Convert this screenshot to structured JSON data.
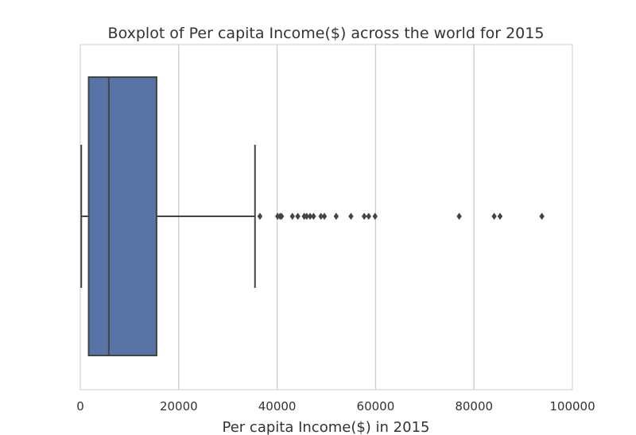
{
  "chart_data": {
    "type": "boxplot",
    "title": "Boxplot of Per capita Income($) across the world for 2015",
    "xlabel": "Per capita Income($) in 2015",
    "ylabel": "",
    "orientation": "horizontal",
    "xlim": [
      0,
      100000
    ],
    "xticks": [
      0,
      20000,
      40000,
      60000,
      80000,
      100000
    ],
    "xtick_labels": [
      "0",
      "20000",
      "40000",
      "60000",
      "80000",
      "100000"
    ],
    "grid": true,
    "legend": "none",
    "box": {
      "whisker_low": 200,
      "q1": 1700,
      "median": 5800,
      "q3": 15500,
      "whisker_high": 35500
    },
    "outliers": [
      36500,
      40100,
      40600,
      40900,
      43100,
      44200,
      45500,
      46000,
      46700,
      47400,
      48900,
      49600,
      52000,
      55000,
      57700,
      58600,
      59900,
      77000,
      84100,
      85300,
      93800
    ],
    "colors": {
      "box_fill": "#5874a6",
      "line": "#444444",
      "grid": "#cccccc",
      "background": "#ffffff"
    }
  }
}
